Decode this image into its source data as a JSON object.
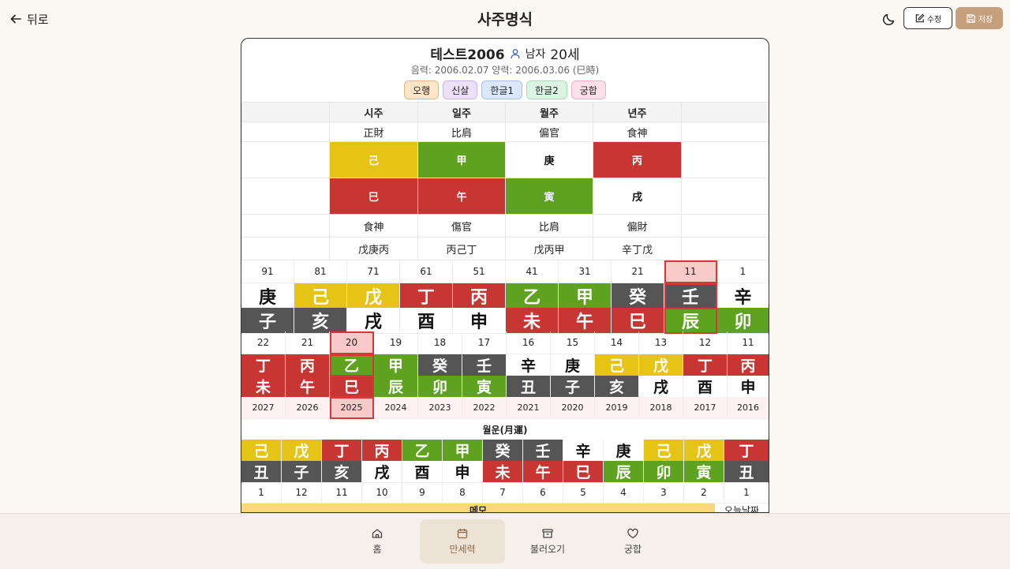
{
  "header": {
    "back_label": "뒤로",
    "title": "사주명식",
    "edit_label": "수정",
    "save_label": "저장"
  },
  "profile": {
    "name": "테스트2006",
    "gender": "남자",
    "age": "20세",
    "dates": "음력: 2006.02.07 양력: 2006.03.06 (巳時)"
  },
  "tabs": [
    {
      "label": "오행",
      "bg": "#fde5c8",
      "border": "#e9b57e"
    },
    {
      "label": "신살",
      "bg": "#ece0fb",
      "border": "#c9b2ee"
    },
    {
      "label": "한글1",
      "bg": "#dbe7fb",
      "border": "#a9c1ea"
    },
    {
      "label": "한글2",
      "bg": "#dcf5e3",
      "border": "#a7dcb7"
    },
    {
      "label": "궁합",
      "bg": "#fde0ea",
      "border": "#eeaec4"
    }
  ],
  "pillars": {
    "headers": [
      "시주",
      "일주",
      "월주",
      "년주"
    ],
    "stem_gods": [
      "正財",
      "比肩",
      "偏官",
      "食神"
    ],
    "stems": [
      {
        "c": "己",
        "t": "y"
      },
      {
        "c": "甲",
        "t": "g"
      },
      {
        "c": "庚",
        "t": "w"
      },
      {
        "c": "丙",
        "t": "r"
      }
    ],
    "branches": [
      {
        "c": "巳",
        "t": "r"
      },
      {
        "c": "午",
        "t": "r"
      },
      {
        "c": "寅",
        "t": "g"
      },
      {
        "c": "戌",
        "t": "w"
      }
    ],
    "branch_gods": [
      "食神",
      "傷官",
      "比肩",
      "偏財"
    ],
    "hidden": [
      "戊庚丙",
      "丙己丁",
      "戊丙甲",
      "辛丁戊"
    ]
  },
  "daeun": {
    "ages": [
      "91",
      "81",
      "71",
      "61",
      "51",
      "41",
      "31",
      "21",
      "11",
      "1"
    ],
    "stems": [
      {
        "c": "庚",
        "t": "w"
      },
      {
        "c": "己",
        "t": "y"
      },
      {
        "c": "戊",
        "t": "y"
      },
      {
        "c": "丁",
        "t": "r"
      },
      {
        "c": "丙",
        "t": "r"
      },
      {
        "c": "乙",
        "t": "g"
      },
      {
        "c": "甲",
        "t": "g"
      },
      {
        "c": "癸",
        "t": "k"
      },
      {
        "c": "壬",
        "t": "k"
      },
      {
        "c": "辛",
        "t": "w"
      }
    ],
    "branches": [
      {
        "c": "子",
        "t": "k"
      },
      {
        "c": "亥",
        "t": "k"
      },
      {
        "c": "戌",
        "t": "w"
      },
      {
        "c": "酉",
        "t": "w"
      },
      {
        "c": "申",
        "t": "w"
      },
      {
        "c": "未",
        "t": "r"
      },
      {
        "c": "午",
        "t": "r"
      },
      {
        "c": "巳",
        "t": "r"
      },
      {
        "c": "辰",
        "t": "g"
      },
      {
        "c": "卯",
        "t": "g"
      }
    ],
    "current_index": 8
  },
  "seun": {
    "ages": [
      "22",
      "21",
      "20",
      "19",
      "18",
      "17",
      "16",
      "15",
      "14",
      "13",
      "12",
      "11"
    ],
    "stems": [
      {
        "c": "丁",
        "t": "r"
      },
      {
        "c": "丙",
        "t": "r"
      },
      {
        "c": "乙",
        "t": "g"
      },
      {
        "c": "甲",
        "t": "g"
      },
      {
        "c": "癸",
        "t": "k"
      },
      {
        "c": "壬",
        "t": "k"
      },
      {
        "c": "辛",
        "t": "w"
      },
      {
        "c": "庚",
        "t": "w"
      },
      {
        "c": "己",
        "t": "y"
      },
      {
        "c": "戊",
        "t": "y"
      },
      {
        "c": "丁",
        "t": "r"
      },
      {
        "c": "丙",
        "t": "r"
      }
    ],
    "branches": [
      {
        "c": "未",
        "t": "r"
      },
      {
        "c": "午",
        "t": "r"
      },
      {
        "c": "巳",
        "t": "r"
      },
      {
        "c": "辰",
        "t": "g"
      },
      {
        "c": "卯",
        "t": "g"
      },
      {
        "c": "寅",
        "t": "g"
      },
      {
        "c": "丑",
        "t": "k"
      },
      {
        "c": "子",
        "t": "k"
      },
      {
        "c": "亥",
        "t": "k"
      },
      {
        "c": "戌",
        "t": "w"
      },
      {
        "c": "酉",
        "t": "w"
      },
      {
        "c": "申",
        "t": "w"
      }
    ],
    "years": [
      "2027",
      "2026",
      "2025",
      "2024",
      "2023",
      "2022",
      "2021",
      "2020",
      "2019",
      "2018",
      "2017",
      "2016"
    ],
    "current_index": 2
  },
  "wolun": {
    "title": "월운(月運)",
    "stems": [
      {
        "c": "己",
        "t": "y"
      },
      {
        "c": "戊",
        "t": "y"
      },
      {
        "c": "丁",
        "t": "r"
      },
      {
        "c": "丙",
        "t": "r"
      },
      {
        "c": "乙",
        "t": "g"
      },
      {
        "c": "甲",
        "t": "g"
      },
      {
        "c": "癸",
        "t": "k"
      },
      {
        "c": "壬",
        "t": "k"
      },
      {
        "c": "辛",
        "t": "w"
      },
      {
        "c": "庚",
        "t": "w"
      },
      {
        "c": "己",
        "t": "y"
      },
      {
        "c": "戊",
        "t": "y"
      },
      {
        "c": "丁",
        "t": "r"
      }
    ],
    "branches": [
      {
        "c": "丑",
        "t": "k"
      },
      {
        "c": "子",
        "t": "k"
      },
      {
        "c": "亥",
        "t": "k"
      },
      {
        "c": "戌",
        "t": "w"
      },
      {
        "c": "酉",
        "t": "w"
      },
      {
        "c": "申",
        "t": "w"
      },
      {
        "c": "未",
        "t": "r"
      },
      {
        "c": "午",
        "t": "r"
      },
      {
        "c": "巳",
        "t": "r"
      },
      {
        "c": "辰",
        "t": "g"
      },
      {
        "c": "卯",
        "t": "g"
      },
      {
        "c": "寅",
        "t": "g"
      },
      {
        "c": "丑",
        "t": "k"
      }
    ],
    "months": [
      "1",
      "12",
      "11",
      "10",
      "9",
      "8",
      "7",
      "6",
      "5",
      "4",
      "3",
      "2",
      "1"
    ]
  },
  "memo": {
    "label": "메모",
    "today_label": "오늘날짜"
  },
  "nav": [
    {
      "label": "홈",
      "icon": "home-icon"
    },
    {
      "label": "만세력",
      "icon": "calendar-icon",
      "active": true
    },
    {
      "label": "불러오기",
      "icon": "archive-icon"
    },
    {
      "label": "궁합",
      "icon": "heart-icon"
    }
  ]
}
